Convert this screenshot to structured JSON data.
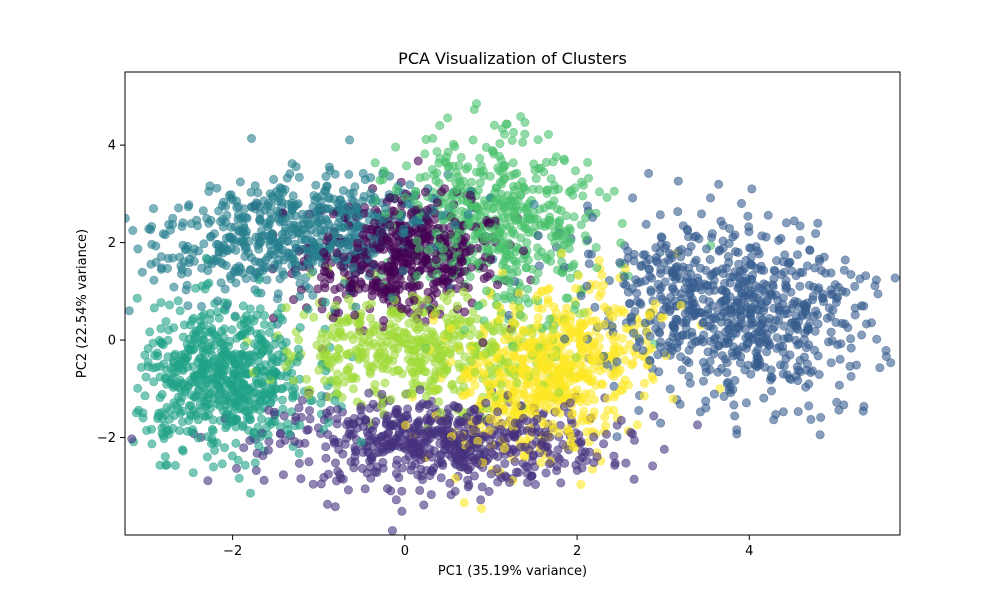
{
  "chart_data": {
    "type": "scatter",
    "title": "PCA Visualization of Clusters",
    "xlabel": "PC1 (35.19% variance)",
    "ylabel": "PC2 (22.54% variance)",
    "xlim": [
      -3.25,
      5.75
    ],
    "ylim": [
      -4.0,
      5.5
    ],
    "xticks": [
      -2,
      0,
      2,
      4
    ],
    "yticks": [
      -2,
      0,
      2,
      4
    ],
    "xtick_labels": [
      "−2",
      "0",
      "2",
      "4"
    ],
    "ytick_labels": [
      "−2",
      "0",
      "2",
      "4"
    ],
    "grid": false,
    "legend": "none",
    "marker_alpha": 0.6,
    "clusters": [
      {
        "id": 0,
        "color": "#440154",
        "center": [
          0.0,
          1.7
        ],
        "spread": [
          0.55,
          0.6
        ],
        "rot": -0.2,
        "n": 520
      },
      {
        "id": 1,
        "color": "#46327e",
        "center": [
          0.4,
          -2.1
        ],
        "spread": [
          0.95,
          0.45
        ],
        "rot": 0.0,
        "n": 650
      },
      {
        "id": 2,
        "color": "#365c8d",
        "center": [
          3.8,
          0.6
        ],
        "spread": [
          0.75,
          1.0
        ],
        "rot": 0.55,
        "n": 760
      },
      {
        "id": 3,
        "color": "#277f8e",
        "center": [
          -1.3,
          2.2
        ],
        "spread": [
          0.85,
          0.55
        ],
        "rot": 0.4,
        "n": 620
      },
      {
        "id": 4,
        "color": "#1fa187",
        "center": [
          -2.1,
          -0.8
        ],
        "spread": [
          0.5,
          0.75
        ],
        "rot": 0.0,
        "n": 650
      },
      {
        "id": 5,
        "color": "#4ac16d",
        "center": [
          1.1,
          2.4
        ],
        "spread": [
          0.55,
          0.9
        ],
        "rot": 0.15,
        "n": 520
      },
      {
        "id": 6,
        "color": "#a0da39",
        "center": [
          0.1,
          -0.2
        ],
        "spread": [
          0.8,
          0.55
        ],
        "rot": 0.0,
        "n": 480
      },
      {
        "id": 7,
        "color": "#fde725",
        "center": [
          1.7,
          -0.7
        ],
        "spread": [
          0.55,
          0.85
        ],
        "rot": -0.3,
        "n": 650
      }
    ]
  }
}
